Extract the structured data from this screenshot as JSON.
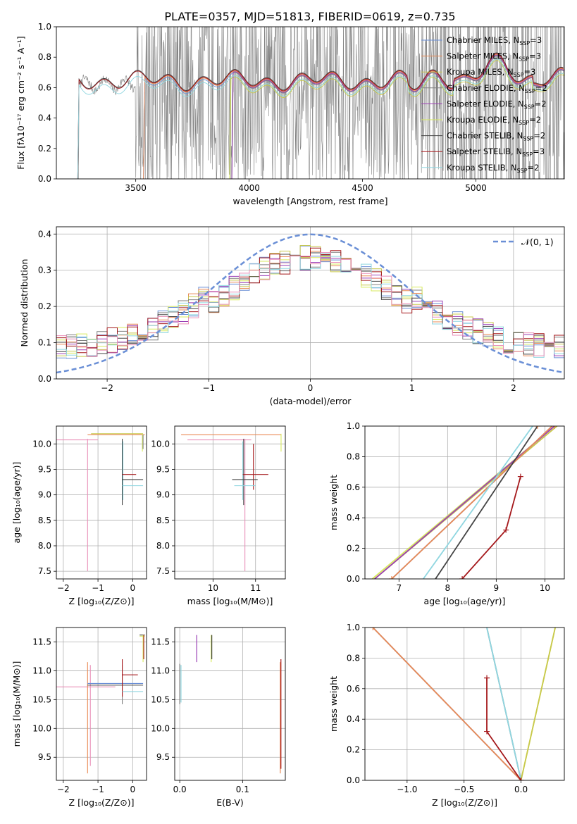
{
  "title": "PLATE=0357, MJD=51813, FIBERID=0619, z=0.735",
  "colors": {
    "chabrier_miles": "#6a8fd6",
    "salpeter_miles": "#e98a55",
    "kroupa_miles": "#c8c84c",
    "chabrier_elodie": "#7f7f7f",
    "salpeter_elodie": "#9b3fb5",
    "kroupa_elodie": "#d7ea5e",
    "chabrier_stelib": "#444444",
    "salpeter_stelib": "#a5191c",
    "kroupa_stelib": "#8fd6e0",
    "pink": "#e98fb8",
    "data": "#808080"
  },
  "chart_data": [
    {
      "id": "spectrum",
      "type": "line",
      "title": "PLATE=0357, MJD=51813, FIBERID=0619, z=0.735",
      "xlabel": "wavelength [Angstrom, rest frame]",
      "ylabel": "Flux [fλ10⁻¹⁷ erg cm⁻² s⁻¹ A⁻¹]",
      "xlim": [
        3150,
        5390
      ],
      "ylim": [
        0,
        1.0
      ],
      "xticks": [
        3500,
        4000,
        4500,
        5000
      ],
      "yticks": [
        0.0,
        0.2,
        0.4,
        0.6,
        0.8,
        1.0
      ],
      "grid": false,
      "legend": "top-right",
      "legend_entries": [
        {
          "label": "Chabrier MILES, N",
          "sub": "SSP",
          "tail": "=3",
          "color": "chabrier_miles"
        },
        {
          "label": "Salpeter MILES, N",
          "sub": "SSP",
          "tail": "=3",
          "color": "salpeter_miles"
        },
        {
          "label": "Kroupa MILES, N",
          "sub": "SSP",
          "tail": "=3",
          "color": "kroupa_miles"
        },
        {
          "label": "Chabrier ELODIE, N",
          "sub": "SSP",
          "tail": "=2",
          "color": "chabrier_elodie"
        },
        {
          "label": "Salpeter ELODIE, N",
          "sub": "SSP",
          "tail": "=2",
          "color": "salpeter_elodie"
        },
        {
          "label": "Kroupa ELODIE, N",
          "sub": "SSP",
          "tail": "=2",
          "color": "kroupa_elodie"
        },
        {
          "label": "Chabrier STELIB, N",
          "sub": "SSP",
          "tail": "=2",
          "color": "chabrier_stelib"
        },
        {
          "label": "Salpeter STELIB, N",
          "sub": "SSP",
          "tail": "=3",
          "color": "salpeter_stelib"
        },
        {
          "label": "Kroupa STELIB, N",
          "sub": "SSP",
          "tail": "=2",
          "color": "kroupa_stelib"
        }
      ]
    },
    {
      "id": "residuals",
      "type": "line",
      "xlabel": "(data-model)/error",
      "ylabel": "Normed distribution",
      "xlim": [
        -2.5,
        2.5
      ],
      "ylim": [
        0,
        0.42
      ],
      "xticks": [
        -2,
        -1,
        0,
        1,
        2
      ],
      "yticks": [
        0.0,
        0.1,
        0.2,
        0.3,
        0.4
      ],
      "grid": true,
      "legend": "top-right",
      "gaussian_label": "𝒩(0, 1)"
    },
    {
      "id": "age_vs_Z",
      "type": "scatter",
      "xlabel": "Z [log₁₀(Z/Z⊙)]",
      "ylabel": "age  [log₁₀(age/yr)]",
      "xlim": [
        -2.2,
        0.4
      ],
      "ylim": [
        7.35,
        10.35
      ],
      "xticks": [
        -2,
        -1,
        0
      ],
      "yticks": [
        7.5,
        8.0,
        8.5,
        9.0,
        9.5,
        10.0
      ],
      "grid": true
    },
    {
      "id": "age_vs_mass",
      "type": "scatter",
      "xlabel": "mass [log₁₀(M/M⊙)]",
      "xlim": [
        9.1,
        11.7
      ],
      "ylim": [
        7.35,
        10.35
      ],
      "xticks": [
        10,
        11
      ],
      "yticks": [
        7.5,
        8.0,
        8.5,
        9.0,
        9.5,
        10.0
      ],
      "grid": true
    },
    {
      "id": "mass_weight_vs_age",
      "type": "line",
      "xlabel": "age  [log₁₀(age/yr)]",
      "ylabel": "mass weight",
      "xlim": [
        6.3,
        10.4
      ],
      "ylim": [
        0,
        1.0
      ],
      "xticks": [
        7,
        8,
        9,
        10
      ],
      "yticks": [
        0.0,
        0.2,
        0.4,
        0.6,
        0.8,
        1.0
      ],
      "grid": true
    },
    {
      "id": "mass_vs_Z",
      "type": "scatter",
      "xlabel": "Z [log₁₀(Z/Z⊙)]",
      "ylabel": "mass [log₁₀(M/M⊙)]",
      "xlim": [
        -2.2,
        0.4
      ],
      "ylim": [
        9.1,
        11.75
      ],
      "xticks": [
        -2,
        -1,
        0
      ],
      "yticks": [
        9.5,
        10.0,
        10.5,
        11.0,
        11.5
      ],
      "grid": true
    },
    {
      "id": "mass_vs_ebv",
      "type": "scatter",
      "xlabel": "E(B-V)",
      "xlim": [
        -0.008,
        0.168
      ],
      "ylim": [
        9.1,
        11.75
      ],
      "xticks": [
        0.0,
        0.1
      ],
      "yticks": [
        9.5,
        10.0,
        10.5,
        11.0,
        11.5
      ],
      "grid": true
    },
    {
      "id": "mass_weight_vs_Z",
      "type": "line",
      "xlabel": "Z [log₁₀(Z/Z⊙)]",
      "ylabel": "mass weight",
      "xlim": [
        -1.37,
        0.38
      ],
      "ylim": [
        0,
        1.0
      ],
      "xticks": [
        -1.0,
        -0.5,
        0.0
      ],
      "yticks": [
        0.0,
        0.2,
        0.4,
        0.6,
        0.8,
        1.0
      ],
      "grid": true
    }
  ]
}
